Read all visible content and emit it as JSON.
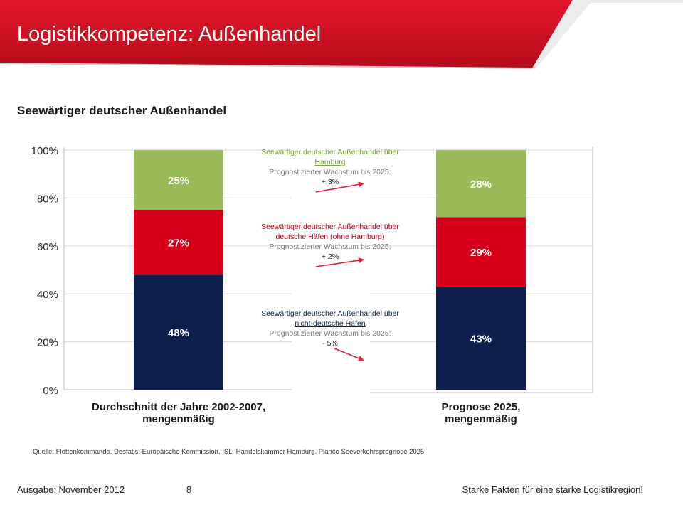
{
  "header": {
    "title": "Logistikkompetenz: Außenhandel",
    "color": "#d8101f"
  },
  "subtitle": "Seewärtiger deutscher Außenhandel",
  "chart_data": {
    "type": "bar",
    "stacked": true,
    "categories": [
      "Durchschnitt der Jahre 2002-2007, mengenmäßig",
      "Prognose 2025, mengenmäßig"
    ],
    "category_lines": [
      [
        "Durchschnitt der Jahre 2002-2007,",
        "mengenmäßig"
      ],
      [
        "Prognose 2025,",
        "mengenmäßig"
      ]
    ],
    "series": [
      {
        "values": [
          48,
          43
        ],
        "labels": [
          "48%",
          "43%"
        ],
        "color": "#0d1f4c"
      },
      {
        "values": [
          27,
          29
        ],
        "labels": [
          "27%",
          "29%"
        ],
        "color": "#d7001a"
      },
      {
        "values": [
          25,
          28
        ],
        "labels": [
          "25%",
          "28%"
        ],
        "color": "#9bbb59"
      }
    ],
    "y_ticks": [
      "0%",
      "20%",
      "40%",
      "60%",
      "80%",
      "100%"
    ],
    "ylim": [
      0,
      100
    ],
    "grid": true
  },
  "annotations": [
    {
      "title": "Seewärtiger deutscher Außenhandel über",
      "port": "Hamburg",
      "growth_label": "Prognostizierter Wachstum bis 2025:",
      "growth": "+ 3%",
      "color": "#7aa23d"
    },
    {
      "title": "Seewärtiger deutscher Außenhandel über",
      "port": "deutsche Häfen (ohne Hamburg)",
      "growth_label": "Prognostizierter Wachstum bis 2025:",
      "growth": "+ 2%",
      "color": "#c8001a"
    },
    {
      "title": "Seewärtiger deutscher Außenhandel über",
      "port": "nicht-deutsche Häfen",
      "growth_label": "Prognostizierter Wachstum bis 2025:",
      "growth": "- 5%",
      "color": "#0d1f4c"
    }
  ],
  "arrow_color": "#e0202e",
  "source": "Quelle: Flottenkommando, Destatis, Europäische Kommission, ISL, Handelskammer Hamburg, Planco Seeverkehrsprognose 2025",
  "footer": {
    "edition": "Ausgabe: November 2012",
    "page_number": "8",
    "tagline": "Starke Fakten für eine starke Logistikregion!"
  }
}
